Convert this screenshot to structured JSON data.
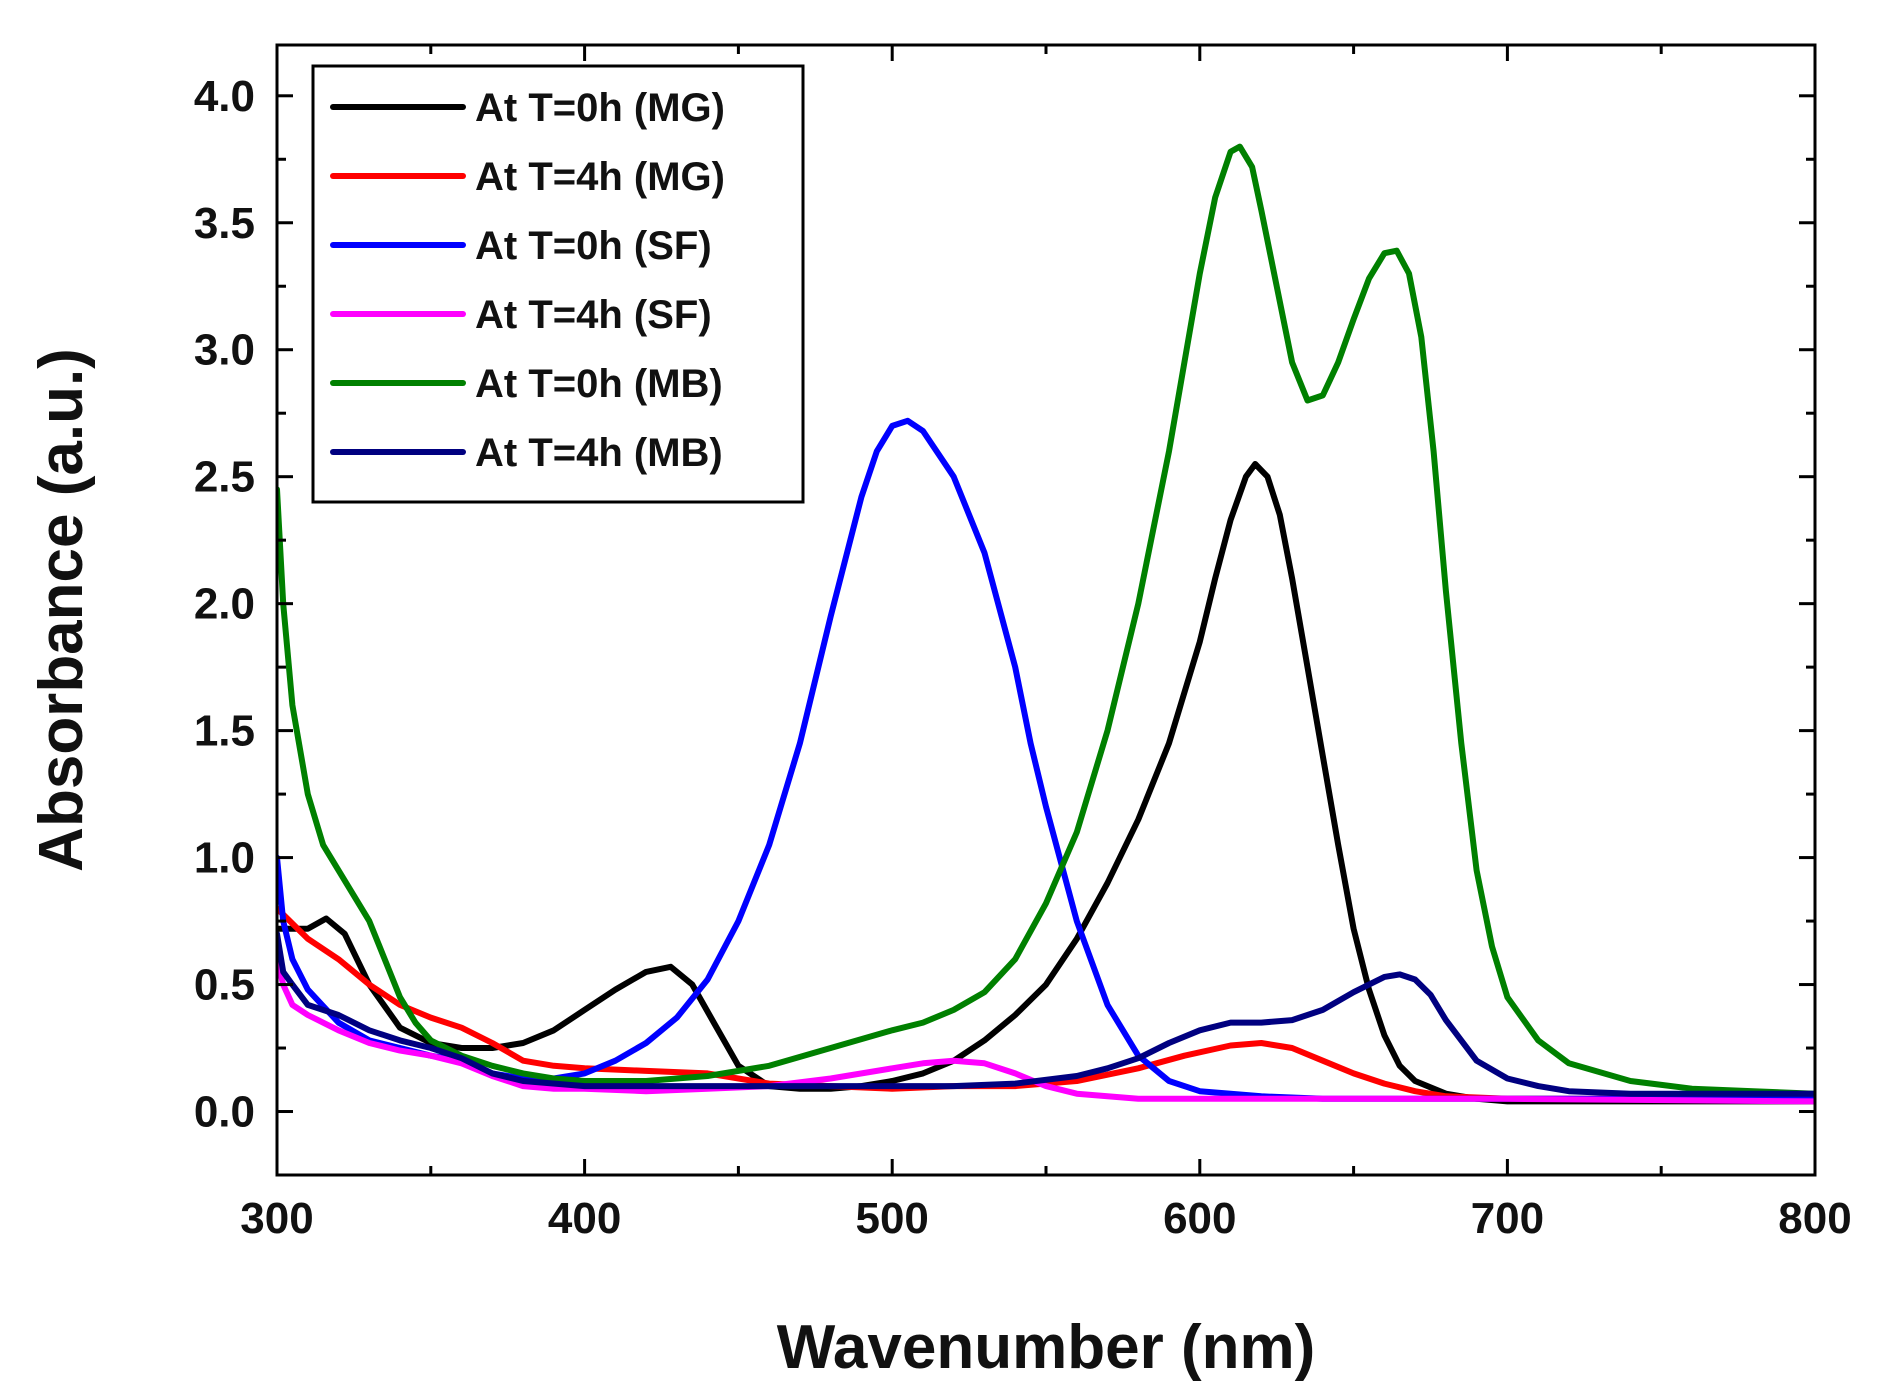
{
  "chart_data": {
    "type": "line",
    "title": "",
    "xlabel": "Wavenumber (nm)",
    "ylabel": "Absorbance (a.u.)",
    "xlim": [
      300,
      800
    ],
    "ylim": [
      -0.25,
      4.2
    ],
    "x_ticks": [
      300,
      400,
      500,
      600,
      700,
      800
    ],
    "x_tick_labels": [
      "300",
      "400",
      "500",
      "600",
      "700",
      "800"
    ],
    "y_ticks": [
      0.0,
      0.5,
      1.0,
      1.5,
      2.0,
      2.5,
      3.0,
      3.5,
      4.0
    ],
    "y_tick_labels": [
      "0.0",
      "0.5",
      "1.0",
      "1.5",
      "2.0",
      "2.5",
      "3.0",
      "3.5",
      "4.0"
    ],
    "grid": false,
    "legend_position": "top-left",
    "series": [
      {
        "name": "At T=0h (MG)",
        "color": "#000000",
        "x": [
          300,
          310,
          316,
          322,
          330,
          340,
          350,
          360,
          370,
          380,
          390,
          400,
          410,
          420,
          428,
          435,
          442,
          450,
          460,
          470,
          480,
          490,
          500,
          510,
          520,
          530,
          540,
          550,
          560,
          570,
          580,
          590,
          600,
          605,
          610,
          615,
          618,
          622,
          626,
          630,
          635,
          640,
          645,
          650,
          655,
          660,
          665,
          670,
          680,
          690,
          700,
          720,
          750,
          800
        ],
        "y": [
          0.72,
          0.72,
          0.76,
          0.7,
          0.5,
          0.33,
          0.27,
          0.25,
          0.25,
          0.27,
          0.32,
          0.4,
          0.48,
          0.55,
          0.57,
          0.5,
          0.35,
          0.18,
          0.1,
          0.09,
          0.09,
          0.1,
          0.12,
          0.15,
          0.2,
          0.28,
          0.38,
          0.5,
          0.68,
          0.9,
          1.15,
          1.45,
          1.85,
          2.1,
          2.33,
          2.5,
          2.55,
          2.5,
          2.35,
          2.1,
          1.75,
          1.4,
          1.05,
          0.72,
          0.48,
          0.3,
          0.18,
          0.12,
          0.07,
          0.05,
          0.04,
          0.04,
          0.04,
          0.04
        ]
      },
      {
        "name": "At T=4h (MG)",
        "color": "#ff0000",
        "x": [
          300,
          310,
          320,
          330,
          340,
          350,
          360,
          370,
          380,
          390,
          400,
          420,
          440,
          460,
          480,
          500,
          520,
          540,
          560,
          580,
          595,
          610,
          620,
          630,
          640,
          650,
          660,
          670,
          680,
          700,
          720,
          750,
          800
        ],
        "y": [
          0.8,
          0.68,
          0.6,
          0.5,
          0.42,
          0.37,
          0.33,
          0.27,
          0.2,
          0.18,
          0.17,
          0.16,
          0.15,
          0.11,
          0.1,
          0.09,
          0.1,
          0.1,
          0.12,
          0.17,
          0.22,
          0.26,
          0.27,
          0.25,
          0.2,
          0.15,
          0.11,
          0.08,
          0.06,
          0.05,
          0.05,
          0.05,
          0.05
        ]
      },
      {
        "name": "At T=0h (SF)",
        "color": "#0000ff",
        "x": [
          300,
          302,
          305,
          310,
          320,
          330,
          340,
          350,
          360,
          370,
          380,
          390,
          400,
          410,
          420,
          430,
          440,
          450,
          460,
          470,
          480,
          490,
          495,
          500,
          505,
          510,
          520,
          530,
          540,
          545,
          550,
          560,
          570,
          580,
          590,
          600,
          610,
          620,
          640,
          660,
          700,
          800
        ],
        "y": [
          1.0,
          0.75,
          0.6,
          0.48,
          0.35,
          0.28,
          0.25,
          0.22,
          0.2,
          0.15,
          0.13,
          0.13,
          0.15,
          0.2,
          0.27,
          0.37,
          0.52,
          0.75,
          1.05,
          1.45,
          1.95,
          2.42,
          2.6,
          2.7,
          2.72,
          2.68,
          2.5,
          2.2,
          1.75,
          1.45,
          1.2,
          0.75,
          0.42,
          0.22,
          0.12,
          0.08,
          0.07,
          0.06,
          0.05,
          0.05,
          0.05,
          0.05
        ]
      },
      {
        "name": "At T=4h (SF)",
        "color": "#ff00ff",
        "x": [
          300,
          302,
          305,
          310,
          320,
          330,
          340,
          350,
          360,
          370,
          380,
          390,
          400,
          420,
          440,
          460,
          480,
          500,
          510,
          520,
          530,
          540,
          550,
          560,
          570,
          580,
          600,
          650,
          700,
          800
        ],
        "y": [
          0.6,
          0.5,
          0.42,
          0.38,
          0.32,
          0.27,
          0.24,
          0.22,
          0.19,
          0.14,
          0.1,
          0.09,
          0.09,
          0.08,
          0.09,
          0.1,
          0.13,
          0.17,
          0.19,
          0.2,
          0.19,
          0.15,
          0.1,
          0.07,
          0.06,
          0.05,
          0.05,
          0.05,
          0.05,
          0.04
        ]
      },
      {
        "name": "At T=0h (MB)",
        "color": "#008000",
        "x": [
          300,
          302,
          305,
          310,
          315,
          320,
          325,
          330,
          335,
          340,
          345,
          350,
          360,
          370,
          380,
          390,
          400,
          420,
          440,
          460,
          480,
          500,
          510,
          520,
          530,
          540,
          550,
          560,
          570,
          580,
          590,
          595,
          600,
          605,
          610,
          613,
          617,
          620,
          625,
          630,
          635,
          640,
          645,
          650,
          655,
          660,
          664,
          668,
          672,
          676,
          680,
          685,
          690,
          695,
          700,
          710,
          720,
          740,
          760,
          780,
          800
        ],
        "y": [
          2.45,
          2.0,
          1.6,
          1.25,
          1.05,
          0.95,
          0.85,
          0.75,
          0.6,
          0.45,
          0.35,
          0.28,
          0.22,
          0.18,
          0.15,
          0.13,
          0.12,
          0.12,
          0.14,
          0.18,
          0.25,
          0.32,
          0.35,
          0.4,
          0.47,
          0.6,
          0.82,
          1.1,
          1.5,
          2.0,
          2.6,
          2.95,
          3.3,
          3.6,
          3.78,
          3.8,
          3.72,
          3.55,
          3.25,
          2.95,
          2.8,
          2.82,
          2.95,
          3.12,
          3.28,
          3.38,
          3.39,
          3.3,
          3.05,
          2.6,
          2.05,
          1.45,
          0.95,
          0.65,
          0.45,
          0.28,
          0.19,
          0.12,
          0.09,
          0.08,
          0.07
        ]
      },
      {
        "name": "At T=4h (MB)",
        "color": "#000080",
        "x": [
          300,
          302,
          305,
          310,
          320,
          330,
          340,
          350,
          360,
          370,
          380,
          400,
          420,
          440,
          460,
          480,
          500,
          520,
          540,
          560,
          570,
          580,
          590,
          600,
          610,
          620,
          630,
          640,
          650,
          660,
          665,
          670,
          675,
          680,
          690,
          700,
          710,
          720,
          740,
          760,
          800
        ],
        "y": [
          0.7,
          0.55,
          0.5,
          0.42,
          0.38,
          0.32,
          0.28,
          0.25,
          0.21,
          0.15,
          0.12,
          0.1,
          0.1,
          0.1,
          0.1,
          0.1,
          0.1,
          0.1,
          0.11,
          0.14,
          0.17,
          0.21,
          0.27,
          0.32,
          0.35,
          0.35,
          0.36,
          0.4,
          0.47,
          0.53,
          0.54,
          0.52,
          0.46,
          0.36,
          0.2,
          0.13,
          0.1,
          0.08,
          0.07,
          0.07,
          0.07
        ]
      }
    ]
  }
}
